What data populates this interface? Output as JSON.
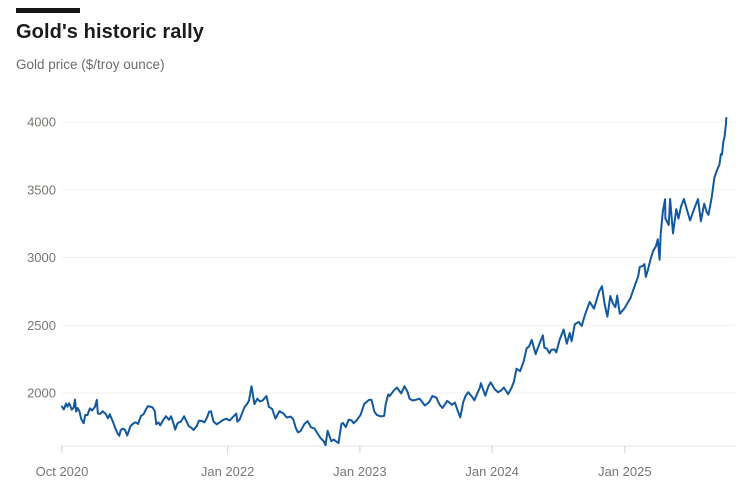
{
  "header": {
    "title": "Gold's historic rally",
    "subtitle": "Gold price ($/troy ounce)"
  },
  "colors": {
    "line": "#12589f",
    "accent_bar": "#161513",
    "title_text": "#1c1b19",
    "muted_text": "#6f6a66",
    "grid": "#f0f0f0",
    "axis_baseline": "#e4e4e4",
    "tick_mark": "#d2d2d2",
    "background": "#ffffff"
  },
  "chart_data": {
    "type": "line",
    "title": "Gold's historic rally",
    "xlabel": "",
    "ylabel": "Gold price ($/troy ounce)",
    "grid": "horizontal-faint",
    "legend": "none",
    "ylim": [
      1600,
      4200
    ],
    "xlim": [
      "2020-10-01",
      "2025-11-01"
    ],
    "y_ticks": [
      2000,
      2500,
      3000,
      3500,
      4000
    ],
    "x_ticks": [
      {
        "date": "2020-10-01",
        "label": "Oct 2020"
      },
      {
        "date": "2022-01-01",
        "label": "Jan 2022"
      },
      {
        "date": "2023-01-01",
        "label": "Jan 2023"
      },
      {
        "date": "2024-01-01",
        "label": "Jan 2024"
      },
      {
        "date": "2025-01-01",
        "label": "Jan 2025"
      }
    ],
    "series": [
      {
        "name": "Gold price ($/troy ounce)",
        "color": "#12589f",
        "points": [
          [
            "2020-10-01",
            1900
          ],
          [
            "2020-10-06",
            1878
          ],
          [
            "2020-10-12",
            1922
          ],
          [
            "2020-10-16",
            1899
          ],
          [
            "2020-10-21",
            1924
          ],
          [
            "2020-10-28",
            1877
          ],
          [
            "2020-11-02",
            1892
          ],
          [
            "2020-11-06",
            1951
          ],
          [
            "2020-11-09",
            1863
          ],
          [
            "2020-11-13",
            1889
          ],
          [
            "2020-11-18",
            1866
          ],
          [
            "2020-11-23",
            1808
          ],
          [
            "2020-11-30",
            1777
          ],
          [
            "2020-12-04",
            1838
          ],
          [
            "2020-12-10",
            1837
          ],
          [
            "2020-12-17",
            1886
          ],
          [
            "2020-12-23",
            1871
          ],
          [
            "2020-12-31",
            1898
          ],
          [
            "2021-01-05",
            1949
          ],
          [
            "2021-01-08",
            1849
          ],
          [
            "2021-01-14",
            1846
          ],
          [
            "2021-01-21",
            1865
          ],
          [
            "2021-01-29",
            1848
          ],
          [
            "2021-02-05",
            1813
          ],
          [
            "2021-02-10",
            1843
          ],
          [
            "2021-02-19",
            1784
          ],
          [
            "2021-02-26",
            1734
          ],
          [
            "2021-03-04",
            1698
          ],
          [
            "2021-03-08",
            1684
          ],
          [
            "2021-03-12",
            1727
          ],
          [
            "2021-03-18",
            1737
          ],
          [
            "2021-03-24",
            1727
          ],
          [
            "2021-03-30",
            1686
          ],
          [
            "2021-04-08",
            1756
          ],
          [
            "2021-04-16",
            1776
          ],
          [
            "2021-04-22",
            1784
          ],
          [
            "2021-04-29",
            1772
          ],
          [
            "2021-05-07",
            1831
          ],
          [
            "2021-05-14",
            1843
          ],
          [
            "2021-05-21",
            1881
          ],
          [
            "2021-05-26",
            1903
          ],
          [
            "2021-06-01",
            1900
          ],
          [
            "2021-06-08",
            1893
          ],
          [
            "2021-06-14",
            1866
          ],
          [
            "2021-06-18",
            1770
          ],
          [
            "2021-06-24",
            1783
          ],
          [
            "2021-06-29",
            1761
          ],
          [
            "2021-07-06",
            1796
          ],
          [
            "2021-07-15",
            1829
          ],
          [
            "2021-07-23",
            1802
          ],
          [
            "2021-07-29",
            1828
          ],
          [
            "2021-08-06",
            1763
          ],
          [
            "2021-08-09",
            1730
          ],
          [
            "2021-08-16",
            1778
          ],
          [
            "2021-08-26",
            1791
          ],
          [
            "2021-09-03",
            1828
          ],
          [
            "2021-09-10",
            1788
          ],
          [
            "2021-09-16",
            1755
          ],
          [
            "2021-09-23",
            1743
          ],
          [
            "2021-09-29",
            1727
          ],
          [
            "2021-10-08",
            1757
          ],
          [
            "2021-10-14",
            1796
          ],
          [
            "2021-10-22",
            1793
          ],
          [
            "2021-10-29",
            1783
          ],
          [
            "2021-11-05",
            1818
          ],
          [
            "2021-11-11",
            1862
          ],
          [
            "2021-11-16",
            1865
          ],
          [
            "2021-11-23",
            1789
          ],
          [
            "2021-12-02",
            1769
          ],
          [
            "2021-12-10",
            1783
          ],
          [
            "2021-12-17",
            1798
          ],
          [
            "2021-12-28",
            1810
          ],
          [
            "2022-01-07",
            1797
          ],
          [
            "2022-01-14",
            1818
          ],
          [
            "2022-01-25",
            1848
          ],
          [
            "2022-01-28",
            1788
          ],
          [
            "2022-02-04",
            1808
          ],
          [
            "2022-02-11",
            1858
          ],
          [
            "2022-02-17",
            1898
          ],
          [
            "2022-02-24",
            1920
          ],
          [
            "2022-03-01",
            1945
          ],
          [
            "2022-03-08",
            2050
          ],
          [
            "2022-03-16",
            1918
          ],
          [
            "2022-03-24",
            1958
          ],
          [
            "2022-03-31",
            1937
          ],
          [
            "2022-04-08",
            1946
          ],
          [
            "2022-04-18",
            1978
          ],
          [
            "2022-04-25",
            1898
          ],
          [
            "2022-05-04",
            1881
          ],
          [
            "2022-05-13",
            1811
          ],
          [
            "2022-05-24",
            1866
          ],
          [
            "2022-06-03",
            1851
          ],
          [
            "2022-06-13",
            1819
          ],
          [
            "2022-06-24",
            1826
          ],
          [
            "2022-07-01",
            1807
          ],
          [
            "2022-07-08",
            1742
          ],
          [
            "2022-07-14",
            1710
          ],
          [
            "2022-07-21",
            1718
          ],
          [
            "2022-08-01",
            1772
          ],
          [
            "2022-08-10",
            1792
          ],
          [
            "2022-08-19",
            1747
          ],
          [
            "2022-08-29",
            1737
          ],
          [
            "2022-09-06",
            1701
          ],
          [
            "2022-09-15",
            1665
          ],
          [
            "2022-09-23",
            1644
          ],
          [
            "2022-09-28",
            1615
          ],
          [
            "2022-10-04",
            1721
          ],
          [
            "2022-10-14",
            1644
          ],
          [
            "2022-10-21",
            1657
          ],
          [
            "2022-10-28",
            1641
          ],
          [
            "2022-11-03",
            1630
          ],
          [
            "2022-11-11",
            1771
          ],
          [
            "2022-11-15",
            1779
          ],
          [
            "2022-11-23",
            1749
          ],
          [
            "2022-12-01",
            1803
          ],
          [
            "2022-12-09",
            1797
          ],
          [
            "2022-12-15",
            1777
          ],
          [
            "2022-12-23",
            1798
          ],
          [
            "2023-01-03",
            1839
          ],
          [
            "2023-01-13",
            1920
          ],
          [
            "2023-01-26",
            1949
          ],
          [
            "2023-02-02",
            1950
          ],
          [
            "2023-02-10",
            1862
          ],
          [
            "2023-02-17",
            1837
          ],
          [
            "2023-02-28",
            1827
          ],
          [
            "2023-03-09",
            1831
          ],
          [
            "2023-03-13",
            1913
          ],
          [
            "2023-03-20",
            1989
          ],
          [
            "2023-03-24",
            1978
          ],
          [
            "2023-04-05",
            2020
          ],
          [
            "2023-04-13",
            2040
          ],
          [
            "2023-04-25",
            1997
          ],
          [
            "2023-05-04",
            2050
          ],
          [
            "2023-05-12",
            2010
          ],
          [
            "2023-05-18",
            1958
          ],
          [
            "2023-05-26",
            1945
          ],
          [
            "2023-06-02",
            1948
          ],
          [
            "2023-06-15",
            1958
          ],
          [
            "2023-06-29",
            1908
          ],
          [
            "2023-07-11",
            1932
          ],
          [
            "2023-07-20",
            1978
          ],
          [
            "2023-07-31",
            1965
          ],
          [
            "2023-08-09",
            1914
          ],
          [
            "2023-08-17",
            1889
          ],
          [
            "2023-08-30",
            1942
          ],
          [
            "2023-09-12",
            1913
          ],
          [
            "2023-09-20",
            1930
          ],
          [
            "2023-09-27",
            1875
          ],
          [
            "2023-10-05",
            1820
          ],
          [
            "2023-10-13",
            1932
          ],
          [
            "2023-10-20",
            1981
          ],
          [
            "2023-10-27",
            2006
          ],
          [
            "2023-11-07",
            1969
          ],
          [
            "2023-11-13",
            1946
          ],
          [
            "2023-11-21",
            1998
          ],
          [
            "2023-11-28",
            2040
          ],
          [
            "2023-12-01",
            2072
          ],
          [
            "2023-12-13",
            1980
          ],
          [
            "2023-12-21",
            2046
          ],
          [
            "2023-12-28",
            2078
          ],
          [
            "2024-01-08",
            2028
          ],
          [
            "2024-01-17",
            2006
          ],
          [
            "2024-01-26",
            2019
          ],
          [
            "2024-02-02",
            2040
          ],
          [
            "2024-02-14",
            1992
          ],
          [
            "2024-02-23",
            2036
          ],
          [
            "2024-03-01",
            2083
          ],
          [
            "2024-03-08",
            2179
          ],
          [
            "2024-03-18",
            2161
          ],
          [
            "2024-03-28",
            2233
          ],
          [
            "2024-04-05",
            2330
          ],
          [
            "2024-04-12",
            2344
          ],
          [
            "2024-04-19",
            2392
          ],
          [
            "2024-04-30",
            2286
          ],
          [
            "2024-05-02",
            2304
          ],
          [
            "2024-05-10",
            2361
          ],
          [
            "2024-05-20",
            2425
          ],
          [
            "2024-05-24",
            2334
          ],
          [
            "2024-05-31",
            2327
          ],
          [
            "2024-06-07",
            2293
          ],
          [
            "2024-06-12",
            2318
          ],
          [
            "2024-06-21",
            2322
          ],
          [
            "2024-06-26",
            2300
          ],
          [
            "2024-07-05",
            2392
          ],
          [
            "2024-07-16",
            2469
          ],
          [
            "2024-07-25",
            2364
          ],
          [
            "2024-08-02",
            2443
          ],
          [
            "2024-08-07",
            2382
          ],
          [
            "2024-08-16",
            2508
          ],
          [
            "2024-08-27",
            2525
          ],
          [
            "2024-09-04",
            2495
          ],
          [
            "2024-09-13",
            2578
          ],
          [
            "2024-09-26",
            2672
          ],
          [
            "2024-10-08",
            2622
          ],
          [
            "2024-10-22",
            2749
          ],
          [
            "2024-10-30",
            2788
          ],
          [
            "2024-11-06",
            2660
          ],
          [
            "2024-11-14",
            2563
          ],
          [
            "2024-11-22",
            2716
          ],
          [
            "2024-11-29",
            2661
          ],
          [
            "2024-12-06",
            2633
          ],
          [
            "2024-12-11",
            2719
          ],
          [
            "2024-12-18",
            2585
          ],
          [
            "2024-12-31",
            2625
          ],
          [
            "2025-01-08",
            2662
          ],
          [
            "2025-01-17",
            2703
          ],
          [
            "2025-01-31",
            2812
          ],
          [
            "2025-02-07",
            2861
          ],
          [
            "2025-02-11",
            2930
          ],
          [
            "2025-02-20",
            2939
          ],
          [
            "2025-02-24",
            2951
          ],
          [
            "2025-02-28",
            2857
          ],
          [
            "2025-03-06",
            2911
          ],
          [
            "2025-03-13",
            2989
          ],
          [
            "2025-03-20",
            3048
          ],
          [
            "2025-03-28",
            3085
          ],
          [
            "2025-04-02",
            3134
          ],
          [
            "2025-04-07",
            2983
          ],
          [
            "2025-04-10",
            3176
          ],
          [
            "2025-04-16",
            3343
          ],
          [
            "2025-04-22",
            3430
          ],
          [
            "2025-04-23",
            3288
          ],
          [
            "2025-05-02",
            3240
          ],
          [
            "2025-05-06",
            3432
          ],
          [
            "2025-05-14",
            3178
          ],
          [
            "2025-05-23",
            3357
          ],
          [
            "2025-05-29",
            3287
          ],
          [
            "2025-06-05",
            3376
          ],
          [
            "2025-06-13",
            3432
          ],
          [
            "2025-06-24",
            3328
          ],
          [
            "2025-06-30",
            3274
          ],
          [
            "2025-07-11",
            3356
          ],
          [
            "2025-07-22",
            3431
          ],
          [
            "2025-07-30",
            3268
          ],
          [
            "2025-08-08",
            3398
          ],
          [
            "2025-08-15",
            3336
          ],
          [
            "2025-08-20",
            3315
          ],
          [
            "2025-08-29",
            3448
          ],
          [
            "2025-09-05",
            3587
          ],
          [
            "2025-09-12",
            3643
          ],
          [
            "2025-09-19",
            3685
          ],
          [
            "2025-09-23",
            3763
          ],
          [
            "2025-09-26",
            3760
          ],
          [
            "2025-09-30",
            3858
          ],
          [
            "2025-10-03",
            3886
          ],
          [
            "2025-10-07",
            3983
          ],
          [
            "2025-10-08",
            4030
          ]
        ]
      }
    ]
  }
}
